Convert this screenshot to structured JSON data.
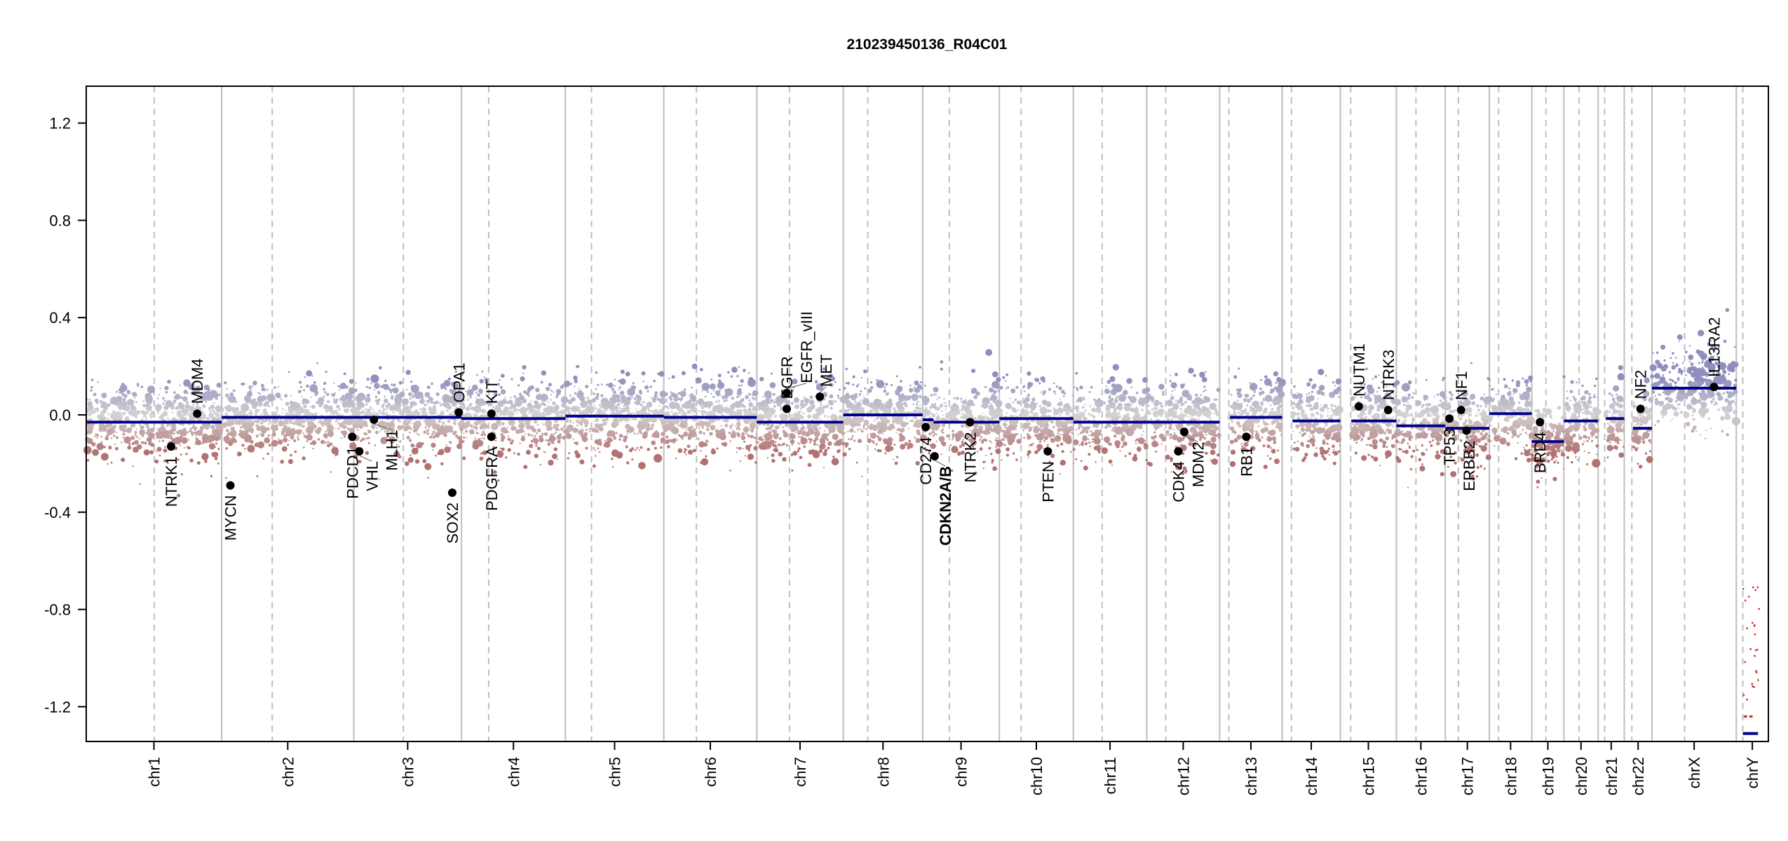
{
  "chart_data": {
    "type": "scatter",
    "title": "210239450136_R04C01",
    "xlabel": "",
    "ylabel": "",
    "ylim": [
      -1.35,
      1.35
    ],
    "yticks": [
      "1.2",
      "0.8",
      "0.4",
      "0.0",
      "-0.4",
      "-0.8",
      "-1.2"
    ],
    "ytick_values": [
      1.2,
      0.8,
      0.4,
      0.0,
      -0.4,
      -0.8,
      -1.2
    ],
    "colors": {
      "gain": "#8f8fbd",
      "neutral": "#d3d3d3",
      "loss": "#b27272",
      "segment": "#00008b",
      "loss_segment": "#cc2222",
      "boundary": "#bebebe",
      "gene": "#000000"
    },
    "chromosomes": [
      {
        "name": "chr1",
        "length": 249,
        "centromere": 125,
        "segments": [
          [
            0,
            249,
            -0.03
          ]
        ]
      },
      {
        "name": "chr2",
        "length": 243,
        "centromere": 93,
        "segments": [
          [
            0,
            243,
            -0.01
          ]
        ]
      },
      {
        "name": "chr3",
        "length": 198,
        "centromere": 91,
        "segments": [
          [
            0,
            198,
            -0.01
          ]
        ]
      },
      {
        "name": "chr4",
        "length": 191,
        "centromere": 50,
        "segments": [
          [
            0,
            191,
            -0.015
          ]
        ]
      },
      {
        "name": "chr5",
        "length": 181,
        "centromere": 48,
        "segments": [
          [
            0,
            181,
            -0.005
          ]
        ]
      },
      {
        "name": "chr6",
        "length": 171,
        "centromere": 60,
        "segments": [
          [
            0,
            171,
            -0.01
          ]
        ]
      },
      {
        "name": "chr7",
        "length": 159,
        "centromere": 60,
        "segments": [
          [
            0,
            159,
            -0.03
          ]
        ]
      },
      {
        "name": "chr8",
        "length": 146,
        "centromere": 45,
        "segments": [
          [
            0,
            146,
            0.0
          ]
        ]
      },
      {
        "name": "chr9",
        "length": 141,
        "centromere": 49,
        "segments": [
          [
            0,
            20,
            -0.02
          ],
          [
            20,
            141,
            -0.03
          ]
        ]
      },
      {
        "name": "chr10",
        "length": 136,
        "centromere": 40,
        "segments": [
          [
            0,
            136,
            -0.015
          ]
        ]
      },
      {
        "name": "chr11",
        "length": 135,
        "centromere": 53,
        "segments": [
          [
            0,
            135,
            -0.03
          ]
        ]
      },
      {
        "name": "chr12",
        "length": 134,
        "centromere": 35,
        "segments": [
          [
            0,
            134,
            -0.03
          ]
        ]
      },
      {
        "name": "chr13",
        "length": 115,
        "centromere": 17,
        "segments": [
          [
            19,
            115,
            -0.01
          ]
        ]
      },
      {
        "name": "chr14",
        "length": 107,
        "centromere": 17,
        "segments": [
          [
            19,
            107,
            -0.025
          ]
        ]
      },
      {
        "name": "chr15",
        "length": 103,
        "centromere": 19,
        "segments": [
          [
            20,
            103,
            -0.025
          ]
        ]
      },
      {
        "name": "chr16",
        "length": 90,
        "centromere": 36,
        "segments": [
          [
            0,
            90,
            -0.045
          ]
        ]
      },
      {
        "name": "chr17",
        "length": 81,
        "centromere": 24,
        "segments": [
          [
            0,
            81,
            -0.055
          ]
        ]
      },
      {
        "name": "chr18",
        "length": 78,
        "centromere": 17,
        "segments": [
          [
            0,
            78,
            0.005
          ]
        ]
      },
      {
        "name": "chr19",
        "length": 59,
        "centromere": 26,
        "segments": [
          [
            0,
            59,
            -0.11
          ]
        ]
      },
      {
        "name": "chr20",
        "length": 63,
        "centromere": 28,
        "segments": [
          [
            0,
            63,
            -0.025
          ]
        ]
      },
      {
        "name": "chr21",
        "length": 48,
        "centromere": 12,
        "segments": [
          [
            14,
            48,
            -0.015
          ]
        ]
      },
      {
        "name": "chr22",
        "length": 51,
        "centromere": 14,
        "segments": [
          [
            16,
            51,
            -0.055
          ]
        ]
      },
      {
        "name": "chrX",
        "length": 155,
        "centromere": 60,
        "segments": [
          [
            0,
            155,
            0.11
          ]
        ]
      },
      {
        "name": "chrY",
        "length": 59,
        "centromere": 12,
        "segments": [
          [
            12,
            40,
            -1.31
          ]
        ]
      }
    ],
    "genes": [
      {
        "name": "NTRK1",
        "chr": "chr1",
        "pos": 156,
        "value": -0.13
      },
      {
        "name": "MDM4",
        "chr": "chr1",
        "pos": 204,
        "value": 0.005
      },
      {
        "name": "MYCN",
        "chr": "chr2",
        "pos": 16,
        "value": -0.29
      },
      {
        "name": "PDCD1",
        "chr": "chr2",
        "pos": 240,
        "value": -0.09
      },
      {
        "name": "VHL",
        "chr": "chr3",
        "pos": 10,
        "value": -0.15
      },
      {
        "name": "MLH1",
        "chr": "chr3",
        "pos": 37,
        "value": -0.02
      },
      {
        "name": "SOX2",
        "chr": "chr3",
        "pos": 181,
        "value": -0.32
      },
      {
        "name": "OPA1",
        "chr": "chr3",
        "pos": 193,
        "value": 0.01
      },
      {
        "name": "KIT",
        "chr": "chr4",
        "pos": 55,
        "value": 0.005
      },
      {
        "name": "PDGFRA",
        "chr": "chr4",
        "pos": 55,
        "value": -0.09
      },
      {
        "name": "EGFR",
        "chr": "chr7",
        "pos": 55,
        "value": 0.025
      },
      {
        "name": "EGFR_vIII",
        "chr": "chr7",
        "pos": 55,
        "value": 0.09
      },
      {
        "name": "MET",
        "chr": "chr7",
        "pos": 116,
        "value": 0.075
      },
      {
        "name": "CD274",
        "chr": "chr9",
        "pos": 5.5,
        "value": -0.05
      },
      {
        "name": "CDKN2A/B",
        "chr": "chr9",
        "pos": 22,
        "value": -0.17,
        "bold": true
      },
      {
        "name": "NTRK2",
        "chr": "chr9",
        "pos": 87,
        "value": -0.03
      },
      {
        "name": "PTEN",
        "chr": "chr10",
        "pos": 89,
        "value": -0.15
      },
      {
        "name": "CDK4",
        "chr": "chr12",
        "pos": 58,
        "value": -0.15
      },
      {
        "name": "MDM2",
        "chr": "chr12",
        "pos": 69,
        "value": -0.07
      },
      {
        "name": "RB1",
        "chr": "chr13",
        "pos": 49,
        "value": -0.09
      },
      {
        "name": "NUTM1",
        "chr": "chr15",
        "pos": 34,
        "value": 0.035
      },
      {
        "name": "NTRK3",
        "chr": "chr15",
        "pos": 88,
        "value": 0.02
      },
      {
        "name": "TP53",
        "chr": "chr17",
        "pos": 7.5,
        "value": -0.015
      },
      {
        "name": "NF1",
        "chr": "chr17",
        "pos": 29,
        "value": 0.02
      },
      {
        "name": "ERBB2",
        "chr": "chr17",
        "pos": 39,
        "value": -0.065
      },
      {
        "name": "BRD4",
        "chr": "chr19",
        "pos": 15,
        "value": -0.03
      },
      {
        "name": "NF2",
        "chr": "chr22",
        "pos": 30,
        "value": 0.025
      },
      {
        "name": "IL13RA2",
        "chr": "chrX",
        "pos": 114,
        "value": 0.115
      }
    ],
    "chrY_detail_segments": [
      [
        14,
        20,
        -1.24
      ],
      [
        24,
        30,
        -1.24
      ]
    ]
  }
}
